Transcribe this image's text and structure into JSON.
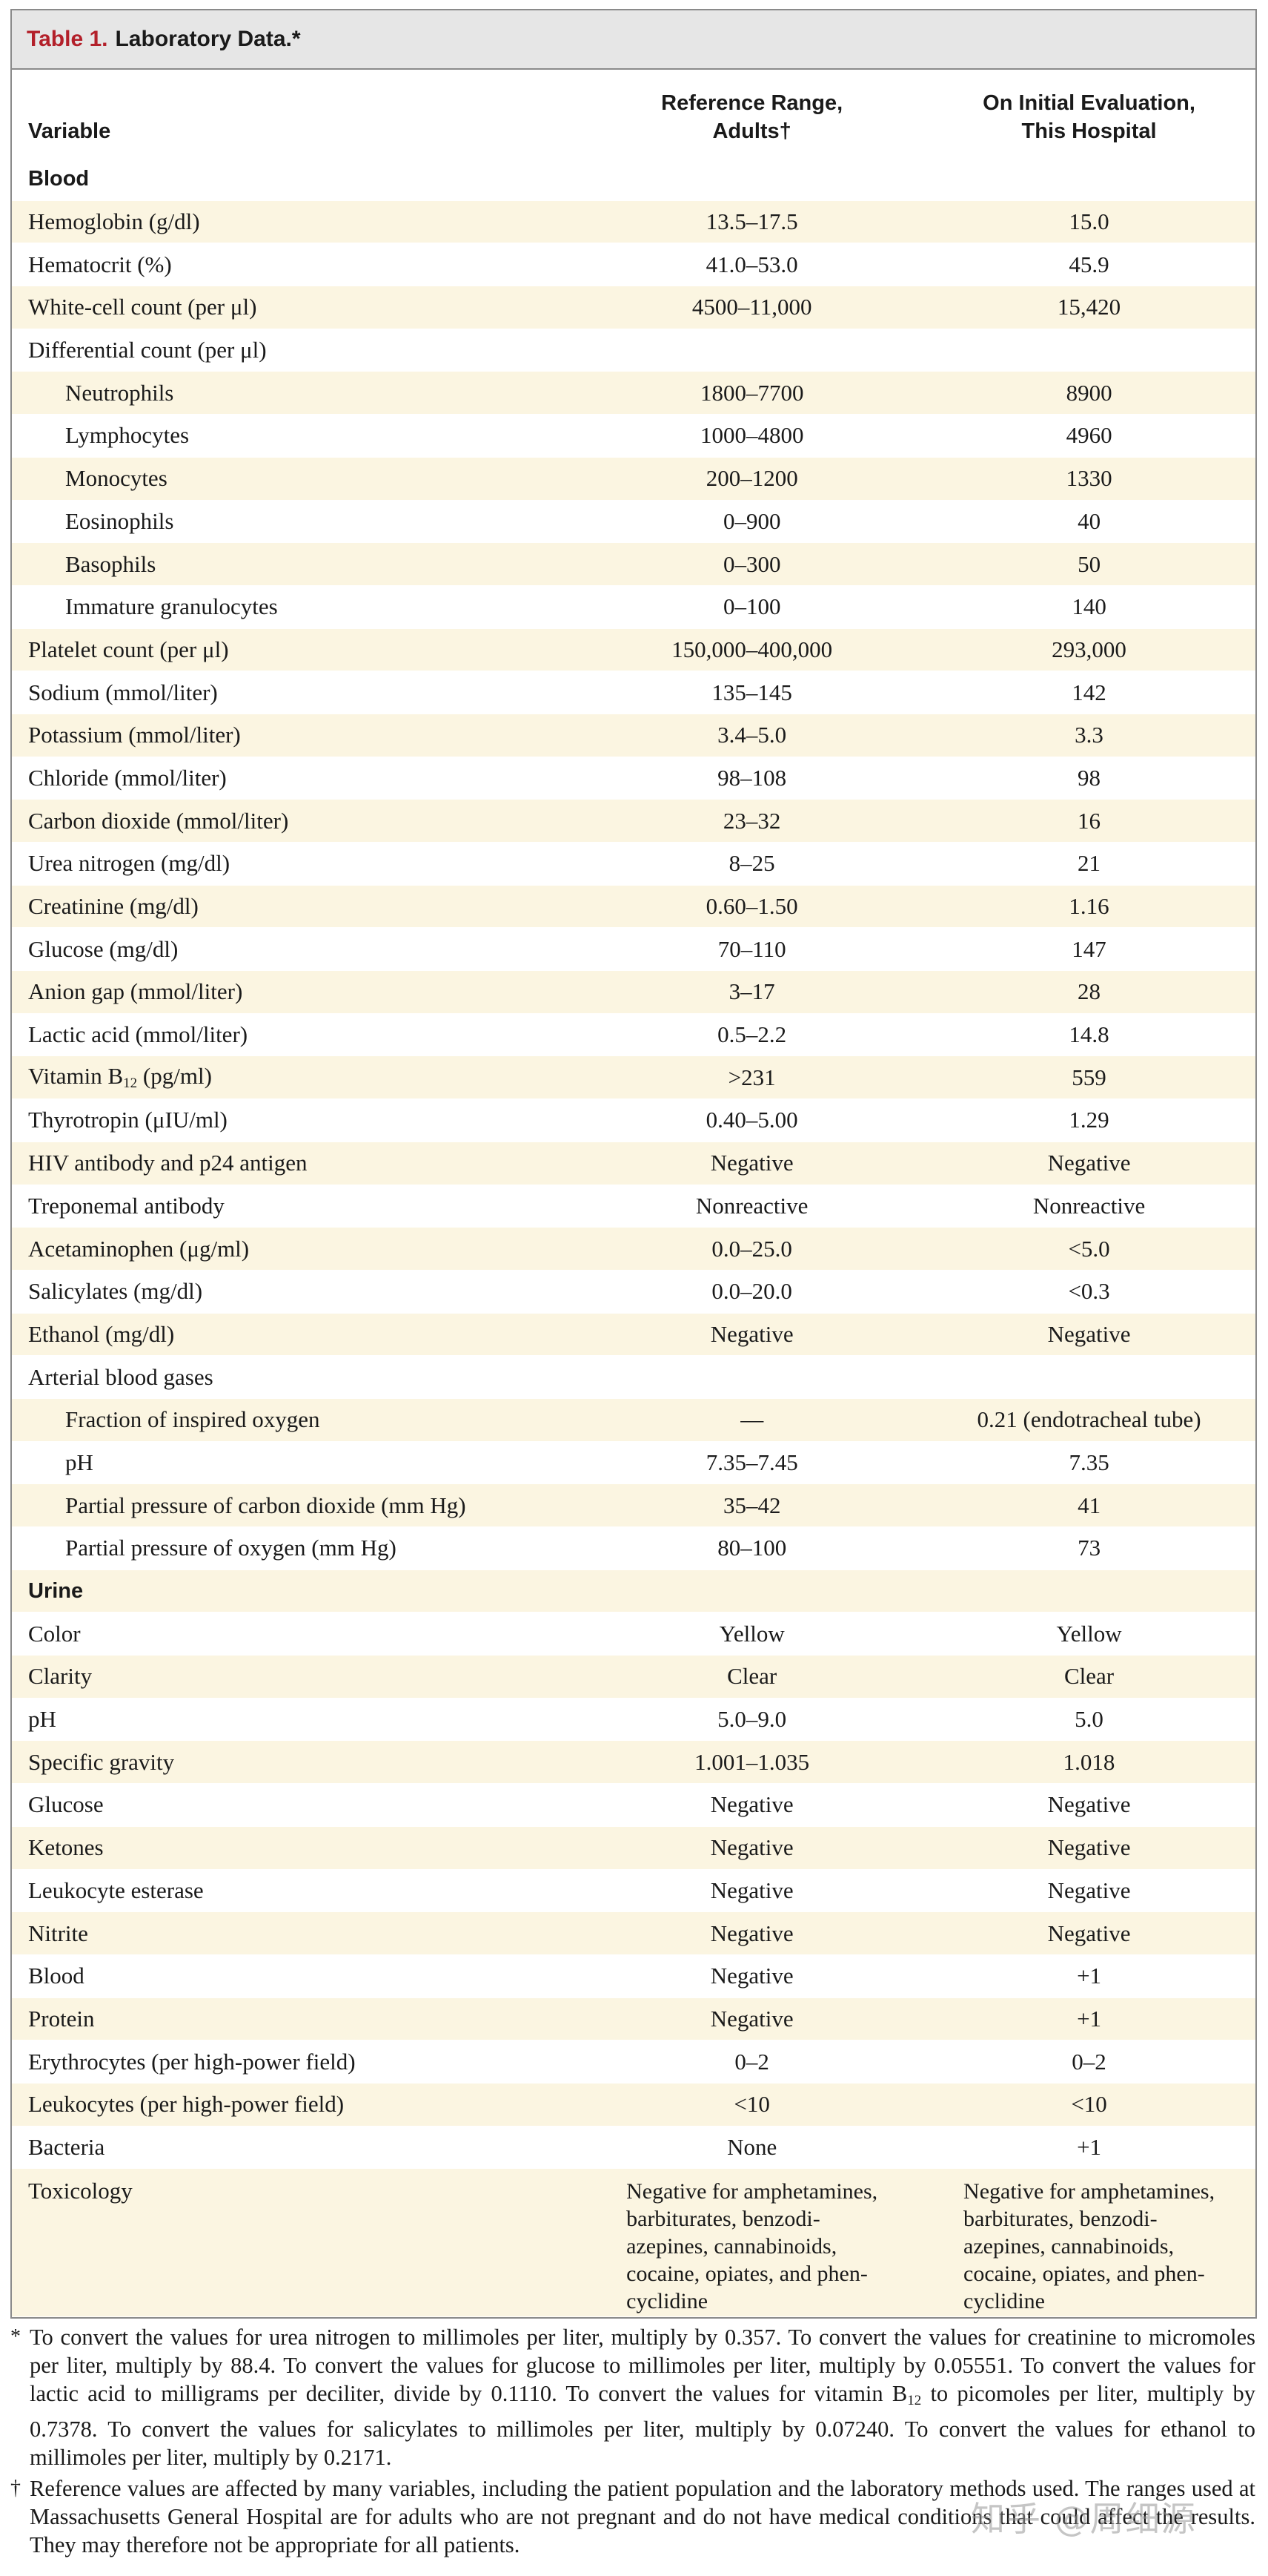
{
  "table": {
    "label": "Table 1.",
    "title": "Laboratory Data.*",
    "columns": [
      "Variable",
      "Reference Range,\nAdults†",
      "On Initial Evaluation,\nThis Hospital"
    ],
    "rows": [
      {
        "v": "Blood",
        "type": "section"
      },
      {
        "v": "Hemoglobin (g/dl)",
        "r": "13.5–17.5",
        "e": "15.0"
      },
      {
        "v": "Hematocrit (%)",
        "r": "41.0–53.0",
        "e": "45.9"
      },
      {
        "v": "White-cell count (per μl)",
        "r": "4500–11,000",
        "e": "15,420"
      },
      {
        "v": "Differential count (per μl)",
        "r": "",
        "e": ""
      },
      {
        "v": "Neutrophils",
        "r": "1800–7700",
        "e": "8900",
        "indent": true
      },
      {
        "v": "Lymphocytes",
        "r": "1000–4800",
        "e": "4960",
        "indent": true
      },
      {
        "v": "Monocytes",
        "r": "200–1200",
        "e": "1330",
        "indent": true
      },
      {
        "v": "Eosinophils",
        "r": "0–900",
        "e": "40",
        "indent": true
      },
      {
        "v": "Basophils",
        "r": "0–300",
        "e": "50",
        "indent": true
      },
      {
        "v": "Immature granulocytes",
        "r": "0–100",
        "e": "140",
        "indent": true
      },
      {
        "v": "Platelet count (per μl)",
        "r": "150,000–400,000",
        "e": "293,000"
      },
      {
        "v": "Sodium (mmol/liter)",
        "r": "135–145",
        "e": "142"
      },
      {
        "v": "Potassium (mmol/liter)",
        "r": "3.4–5.0",
        "e": "3.3"
      },
      {
        "v": "Chloride (mmol/liter)",
        "r": "98–108",
        "e": "98"
      },
      {
        "v": "Carbon dioxide (mmol/liter)",
        "r": "23–32",
        "e": "16"
      },
      {
        "v": "Urea nitrogen (mg/dl)",
        "r": "8–25",
        "e": "21"
      },
      {
        "v": "Creatinine (mg/dl)",
        "r": "0.60–1.50",
        "e": "1.16"
      },
      {
        "v": "Glucose (mg/dl)",
        "r": "70–110",
        "e": "147"
      },
      {
        "v": "Anion gap (mmol/liter)",
        "r": "3–17",
        "e": "28"
      },
      {
        "v": "Lactic acid (mmol/liter)",
        "r": "0.5–2.2",
        "e": "14.8"
      },
      {
        "v": "Vitamin B",
        "sub": "12",
        "v2": " (pg/ml)",
        "r": ">231",
        "e": "559"
      },
      {
        "v": "Thyrotropin (μIU/ml)",
        "r": "0.40–5.00",
        "e": "1.29"
      },
      {
        "v": "HIV antibody and p24 antigen",
        "r": "Negative",
        "e": "Negative"
      },
      {
        "v": "Treponemal antibody",
        "r": "Nonreactive",
        "e": "Nonreactive"
      },
      {
        "v": "Acetaminophen (μg/ml)",
        "r": "0.0–25.0",
        "e": "<5.0"
      },
      {
        "v": "Salicylates (mg/dl)",
        "r": "0.0–20.0",
        "e": "<0.3"
      },
      {
        "v": "Ethanol (mg/dl)",
        "r": "Negative",
        "e": "Negative"
      },
      {
        "v": "Arterial blood gases",
        "r": "",
        "e": ""
      },
      {
        "v": "Fraction of inspired oxygen",
        "r": "—",
        "e": "0.21 (endotracheal tube)",
        "indent": true
      },
      {
        "v": "pH",
        "r": "7.35–7.45",
        "e": "7.35",
        "indent": true
      },
      {
        "v": "Partial pressure of carbon dioxide (mm Hg)",
        "r": "35–42",
        "e": "41",
        "indent": true
      },
      {
        "v": "Partial pressure of oxygen (mm Hg)",
        "r": "80–100",
        "e": "73",
        "indent": true
      },
      {
        "v": "Urine",
        "type": "section"
      },
      {
        "v": "Color",
        "r": "Yellow",
        "e": "Yellow"
      },
      {
        "v": "Clarity",
        "r": "Clear",
        "e": "Clear"
      },
      {
        "v": "pH",
        "r": "5.0–9.0",
        "e": "5.0"
      },
      {
        "v": "Specific gravity",
        "r": "1.001–1.035",
        "e": "1.018"
      },
      {
        "v": "Glucose",
        "r": "Negative",
        "e": "Negative"
      },
      {
        "v": "Ketones",
        "r": "Negative",
        "e": "Negative"
      },
      {
        "v": "Leukocyte esterase",
        "r": "Negative",
        "e": "Negative"
      },
      {
        "v": "Nitrite",
        "r": "Negative",
        "e": "Negative"
      },
      {
        "v": "Blood",
        "r": "Negative",
        "e": "+1"
      },
      {
        "v": "Protein",
        "r": "Negative",
        "e": "+1"
      },
      {
        "v": "Erythrocytes (per high-power field)",
        "r": "0–2",
        "e": "0–2"
      },
      {
        "v": "Leukocytes (per high-power field)",
        "r": "<10",
        "e": "<10"
      },
      {
        "v": "Bacteria",
        "r": "None",
        "e": "+1"
      },
      {
        "v": "Toxicology",
        "r": "Negative for amphetamines,\nbarbiturates, benzodi-\nazepines, cannabinoids,\ncocaine, opiates, and phen-\ncyclidine",
        "e": "Negative for amphetamines,\nbarbiturates, benzodi-\nazepines, cannabinoids,\ncocaine, opiates, and phen-\ncyclidine",
        "tall": true
      }
    ]
  },
  "footnotes": [
    {
      "mark": "*",
      "text_a": "To convert the values for urea nitrogen to millimoles per liter, multiply by 0.357. To convert the values for creatinine to micromoles per liter, multiply by 88.4. To convert the values for glucose to millimoles per liter, multiply by 0.05551. To convert the values for lactic acid to milligrams per deciliter, divide by 0.1110. To convert the values for vitamin B",
      "sub": "12",
      "text_b": " to picomoles per liter, multiply by 0.7378. To convert the values for salicylates to millimoles per liter, multiply by 0.07240. To convert the values for ethanol to millimoles per liter, multiply by 0.2171."
    },
    {
      "mark": "†",
      "text_a": "Reference values are affected by many variables, including the patient population and the laboratory methods used. The ranges used at Massachusetts General Hospital are for adults who are not pregnant and do not have medical conditions that could affect the results. They may therefore not be appropriate for all patients.",
      "sub": "",
      "text_b": ""
    }
  ],
  "watermark": "知乎 @周细源",
  "colors": {
    "title_label": "#b3202a",
    "shade": "#fbf5e1",
    "title_bg": "#e6e6e6"
  }
}
